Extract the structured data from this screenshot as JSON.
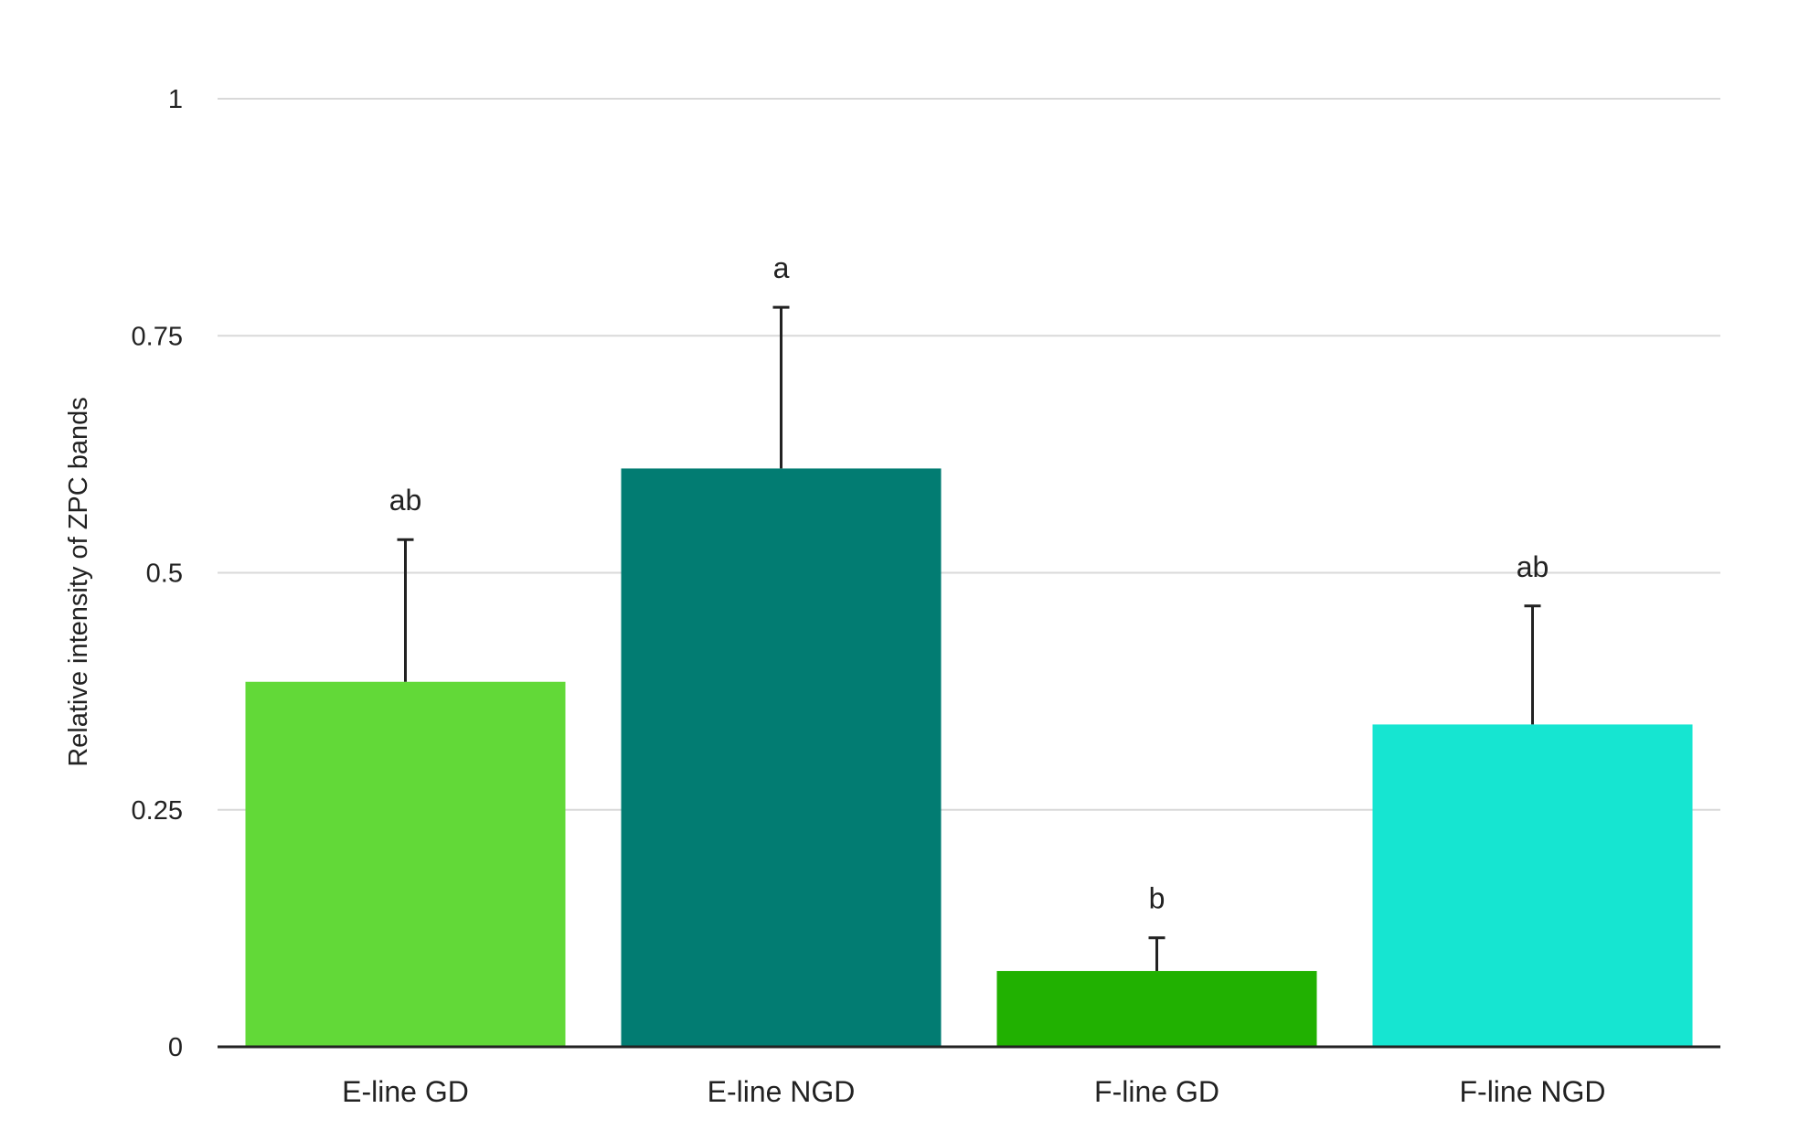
{
  "chart_data": {
    "type": "bar",
    "title": "",
    "xlabel": "",
    "ylabel": "Relative intensity of ZPC bands",
    "categories": [
      "E-line GD",
      "E-line NGD",
      "F-line GD",
      "F-line NGD"
    ],
    "values": [
      0.385,
      0.61,
      0.08,
      0.34
    ],
    "error_upper": [
      0.535,
      0.78,
      0.115,
      0.465
    ],
    "significance_labels": [
      "ab",
      "a",
      "b",
      "ab"
    ],
    "colors": [
      "#62d938",
      "#027c72",
      "#21b101",
      "#16e5d1"
    ],
    "ylim": [
      0,
      1
    ],
    "yticks": [
      0,
      0.25,
      0.5,
      0.75,
      1
    ],
    "ytick_labels": [
      "0",
      "0.25",
      "0.5",
      "0.75",
      "1"
    ],
    "grid": true,
    "legend": "none"
  }
}
